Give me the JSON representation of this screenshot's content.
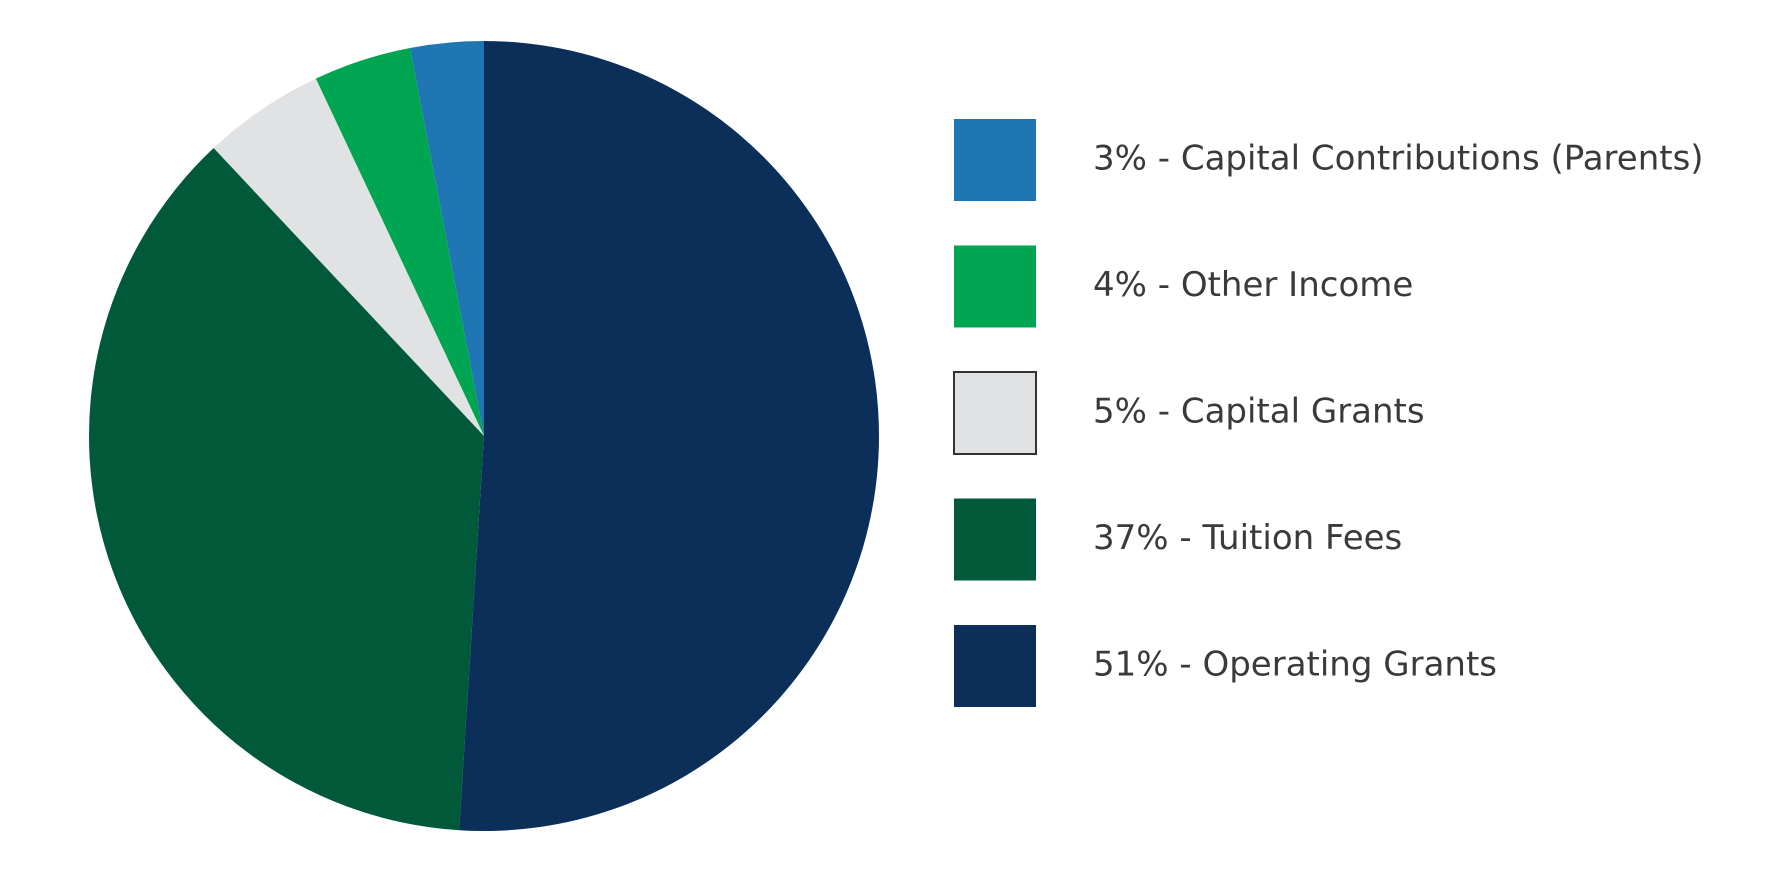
{
  "chart_data": {
    "type": "pie",
    "categories": [
      "3% - Capital Contributions (Parents)",
      "4% - Other Income",
      "5% - Capital Grants",
      "37% - Tuition Fees",
      "51% - Operating Grants"
    ],
    "values": [
      3,
      4,
      5,
      37,
      51
    ],
    "colors": [
      "#1f76b3",
      "#00a551",
      "#e0e2e4",
      "#005a3a",
      "#0b2f59"
    ]
  }
}
